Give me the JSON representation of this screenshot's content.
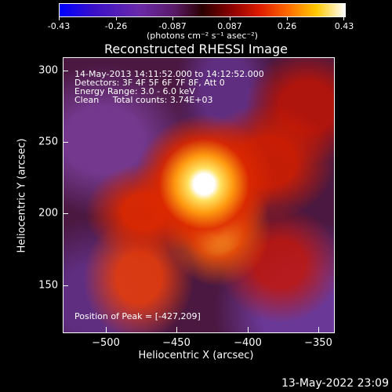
{
  "colorbar": {
    "ticks": [
      "-0.43",
      "-0.26",
      "-0.087",
      "0.087",
      "0.26",
      "0.43"
    ],
    "units": "(photons cm⁻² s⁻¹ asec⁻²)"
  },
  "plot": {
    "title": "Reconstructed RHESSI Image",
    "xlabel": "Heliocentric X (arcsec)",
    "ylabel": "Heliocentric Y (arcsec)",
    "xticks": [
      "−500",
      "−450",
      "−400",
      "−350"
    ],
    "yticks": [
      "300",
      "250",
      "200",
      "150"
    ]
  },
  "info": {
    "time": "14-May-2013 14:11:52.000 to 14:12:52.000",
    "detectors": "Detectors: 3F 4F 5F 6F 7F 8F, Att 0",
    "energy": "Energy Range: 3.0 - 6.0 keV",
    "method": "Clean     Total counts: 3.74E+03",
    "peak": "Position of Peak = [-427,209]"
  },
  "footer": {
    "timestamp": "13-May-2022 23:09"
  },
  "colors": {
    "axis": "#ffffff",
    "background": "#000000"
  }
}
